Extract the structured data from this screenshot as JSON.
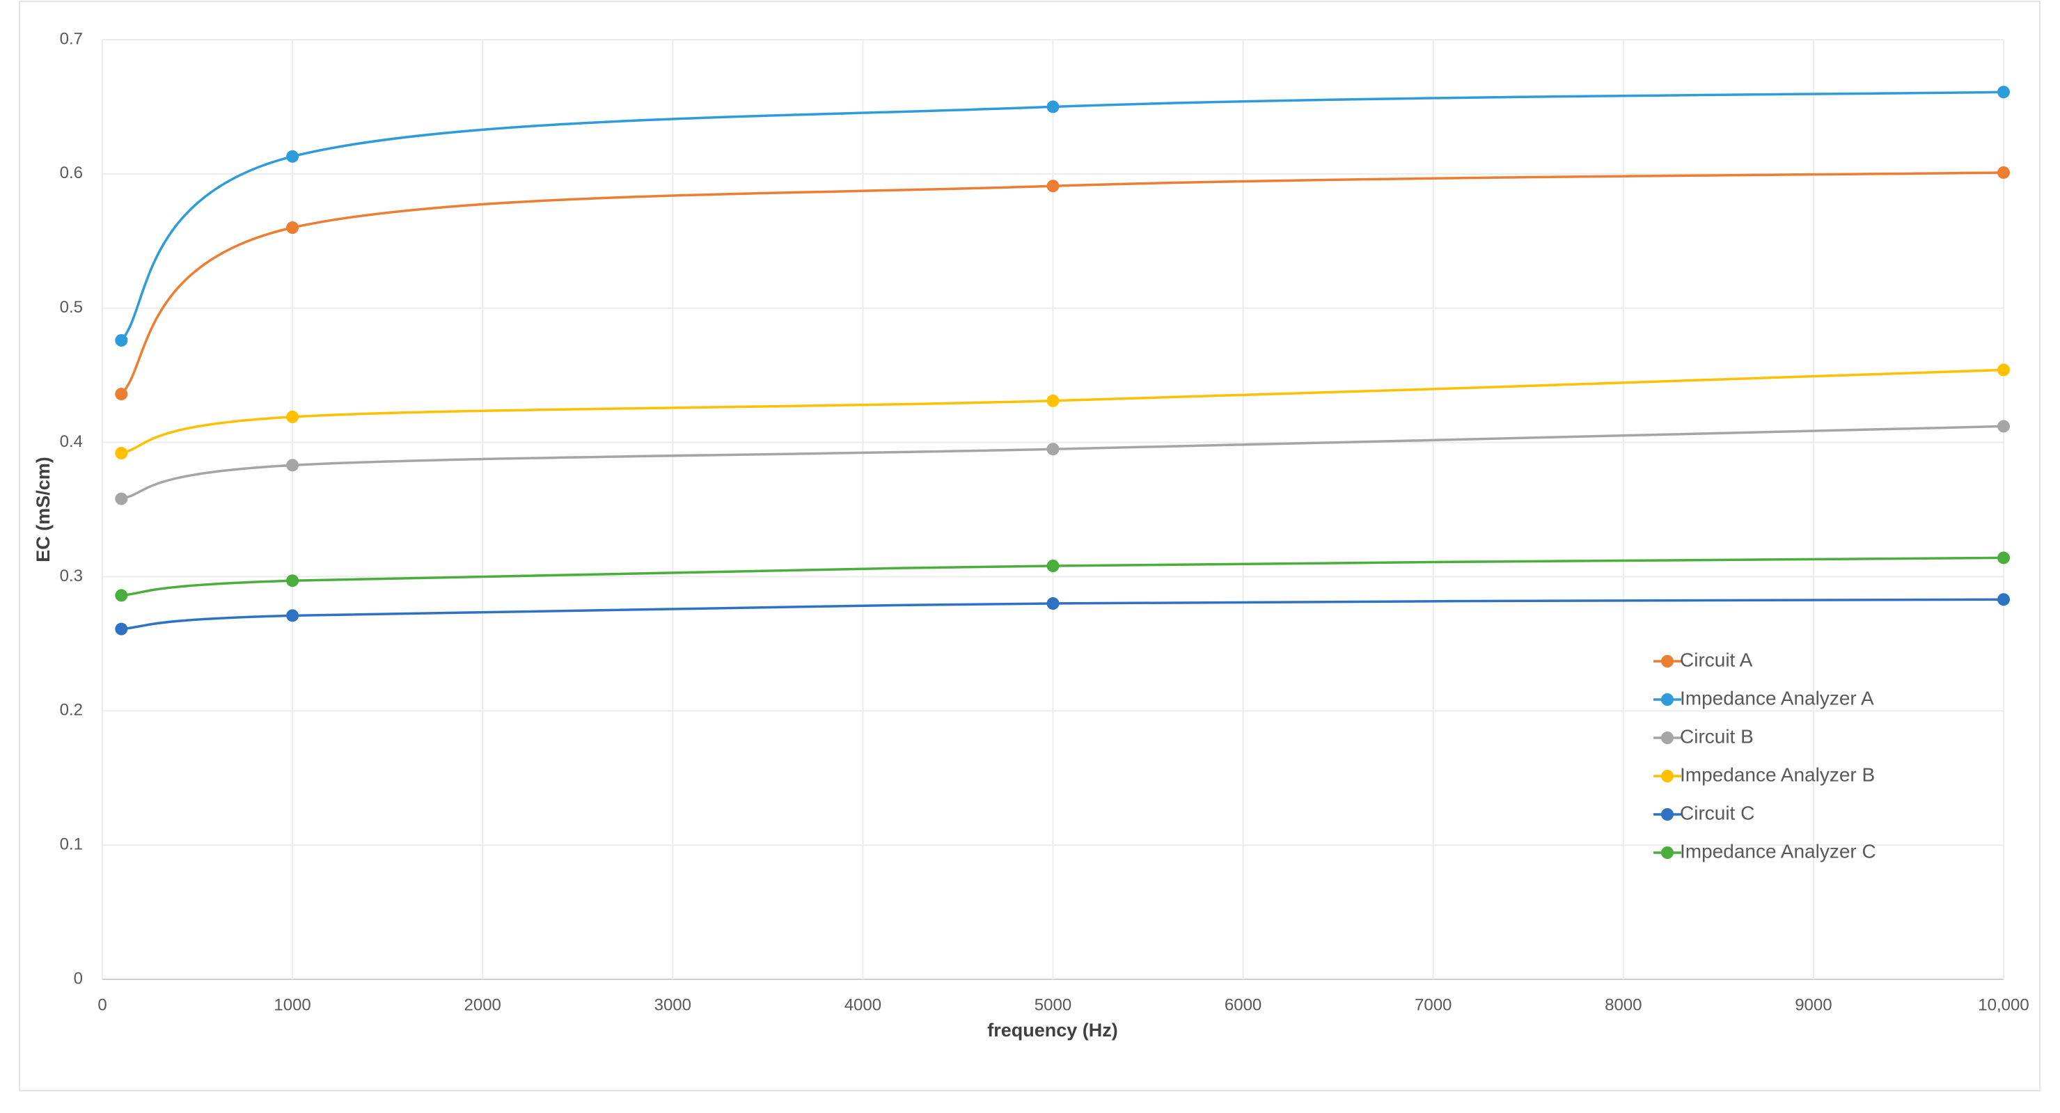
{
  "chart_data": {
    "type": "line",
    "x_label": "frequency (Hz)",
    "y_label": "EC (mS/cm)",
    "x": [
      100,
      1000,
      5000,
      10000
    ],
    "series": [
      {
        "name": "Circuit A",
        "color": "#ED7D31",
        "values": [
          0.436,
          0.56,
          0.591,
          0.601
        ]
      },
      {
        "name": "Impedance Analyzer A",
        "color": "#2E9CDB",
        "values": [
          0.476,
          0.613,
          0.65,
          0.661
        ]
      },
      {
        "name": "Circuit B",
        "color": "#A5A5A5",
        "values": [
          0.358,
          0.383,
          0.395,
          0.412
        ]
      },
      {
        "name": "Impedance Analyzer B",
        "color": "#FFC000",
        "values": [
          0.392,
          0.419,
          0.431,
          0.454
        ]
      },
      {
        "name": "Circuit C",
        "color": "#2F72C4",
        "values": [
          0.261,
          0.271,
          0.28,
          0.283
        ]
      },
      {
        "name": "Impedance Analyzer C",
        "color": "#4AAE3C",
        "values": [
          0.286,
          0.297,
          0.308,
          0.314
        ]
      }
    ],
    "xlim": [
      0,
      10000
    ],
    "xticks": [
      0,
      1000,
      2000,
      3000,
      4000,
      5000,
      6000,
      7000,
      8000,
      9000,
      {
        "value": 10000,
        "label": "10,000"
      }
    ],
    "ylim": [
      0,
      0.7
    ],
    "yticks": [
      0,
      0.1,
      0.2,
      0.3,
      0.4,
      0.5,
      0.6,
      0.7
    ],
    "grid": true,
    "smooth": true,
    "legend": "right"
  }
}
